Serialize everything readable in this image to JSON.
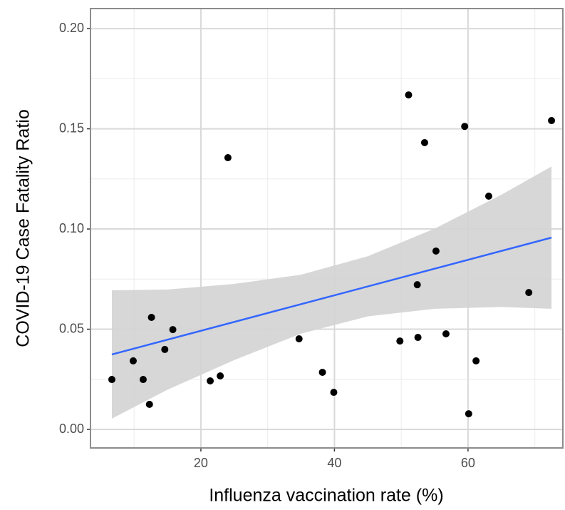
{
  "chart_data": {
    "type": "scatter",
    "x_label": "Influenza vaccination rate (%)",
    "y_label": "COVID-19 Case Fatality Ratio",
    "xlim": [
      3.47,
      74.2
    ],
    "ylim": [
      -0.00925,
      0.21
    ],
    "xticks": [
      20,
      40,
      60
    ],
    "yticks": [
      {
        "value": 0,
        "label": "0.00"
      },
      {
        "value": 0.05,
        "label": "0.05"
      },
      {
        "value": 0.1,
        "label": "0.10"
      },
      {
        "value": 0.15,
        "label": "0.15"
      },
      {
        "value": 0.2,
        "label": "0.20"
      }
    ],
    "xminor": [
      10,
      30,
      50,
      70
    ],
    "yminor": [
      0.025,
      0.075,
      0.125,
      0.175
    ],
    "grid": true,
    "series": [
      {
        "color": "#000000",
        "x": [
          6.67,
          9.87,
          11.36,
          12.3,
          12.6,
          14.6,
          15.8,
          21.4,
          22.9,
          24.05,
          34.7,
          38.2,
          39.9,
          49.8,
          51.1,
          52.4,
          52.5,
          53.5,
          55.2,
          56.7,
          59.5,
          60.1,
          61.2,
          63.1,
          69.1,
          72.5
        ],
        "values": [
          0.0249,
          0.0342,
          0.0249,
          0.0125,
          0.0559,
          0.0399,
          0.0498,
          0.0242,
          0.0267,
          0.1356,
          0.0452,
          0.0285,
          0.0185,
          0.0441,
          0.1669,
          0.0722,
          0.0459,
          0.1431,
          0.089,
          0.0477,
          0.1512,
          0.0078,
          0.0342,
          0.1164,
          0.0683,
          0.1541
        ]
      }
    ],
    "fit": {
      "color": "#3366ff",
      "x": [
        6.67,
        72.5
      ],
      "values": [
        0.0374,
        0.0957
      ]
    },
    "band": {
      "color": "#d3d3d3",
      "x": [
        6.67,
        15,
        25,
        35,
        45,
        55,
        65,
        72.5
      ],
      "lower": [
        0.0054,
        0.0198,
        0.0346,
        0.0478,
        0.0564,
        0.0602,
        0.0611,
        0.0602
      ],
      "upper": [
        0.0694,
        0.0698,
        0.0726,
        0.0772,
        0.0864,
        0.1002,
        0.1171,
        0.1312
      ]
    }
  }
}
